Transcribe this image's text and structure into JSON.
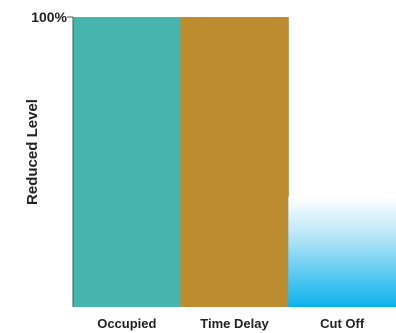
{
  "chart_data": {
    "type": "bar",
    "categories": [
      "Occupied",
      "Time Delay",
      "Cut Off"
    ],
    "values": [
      100,
      100,
      38
    ],
    "ylabel": "Reduced Level",
    "xlabel": "",
    "ylim": [
      0,
      100
    ],
    "y_tick_labels": [
      "100%"
    ],
    "bar_colors": [
      "#45b5ad",
      "#bc8c2e",
      "#0bb2ec"
    ],
    "cutoff_bar_style": "gradient fading to white at top",
    "grid": false,
    "legend": "none"
  }
}
